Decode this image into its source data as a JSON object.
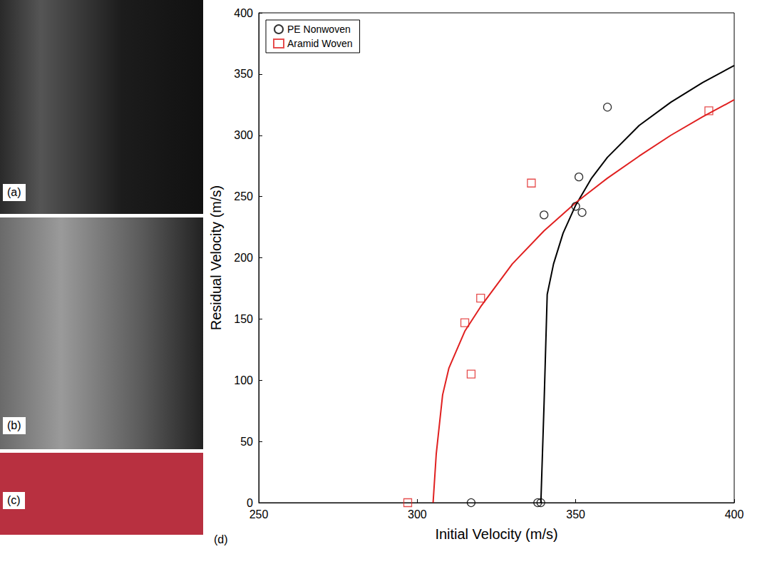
{
  "panel_labels": [
    "(a)",
    "(b)",
    "(c)"
  ],
  "chart_data": {
    "type": "scatter",
    "panel_label": "(d)",
    "x_label": "Initial Velocity (m/s)",
    "y_label": "Residual Velocity (m/s)",
    "xlim": [
      250,
      400
    ],
    "xticks": [
      250,
      300,
      350,
      400
    ],
    "ylim": [
      0,
      400
    ],
    "yticks": [
      0,
      50,
      100,
      150,
      200,
      250,
      300,
      350,
      400
    ],
    "grid": false,
    "legend": "upper left",
    "series": [
      {
        "name": "PE Nonwoven",
        "color": "#000000",
        "marker": "circle",
        "x": [
          317,
          338,
          339,
          340,
          350,
          351,
          352,
          360
        ],
        "values": [
          0,
          0,
          0,
          235,
          242,
          266,
          237,
          323
        ],
        "fit_x": [
          339,
          340,
          341,
          343,
          346,
          350,
          355,
          360,
          370,
          380,
          390,
          400
        ],
        "fit_values": [
          0,
          80,
          170,
          195,
          220,
          243,
          265,
          282,
          308,
          327,
          343,
          357
        ]
      },
      {
        "name": "Aramid Woven",
        "color": "#e02020",
        "marker": "square",
        "x": [
          297,
          315,
          317,
          320,
          336,
          392
        ],
        "values": [
          0,
          147,
          105,
          167,
          261,
          320
        ],
        "fit_x": [
          305,
          306,
          308,
          310,
          315,
          320,
          330,
          340,
          350,
          360,
          370,
          380,
          390,
          400
        ],
        "fit_values": [
          0,
          40,
          88,
          110,
          140,
          160,
          195,
          222,
          245,
          265,
          283,
          300,
          315,
          329
        ]
      }
    ]
  }
}
